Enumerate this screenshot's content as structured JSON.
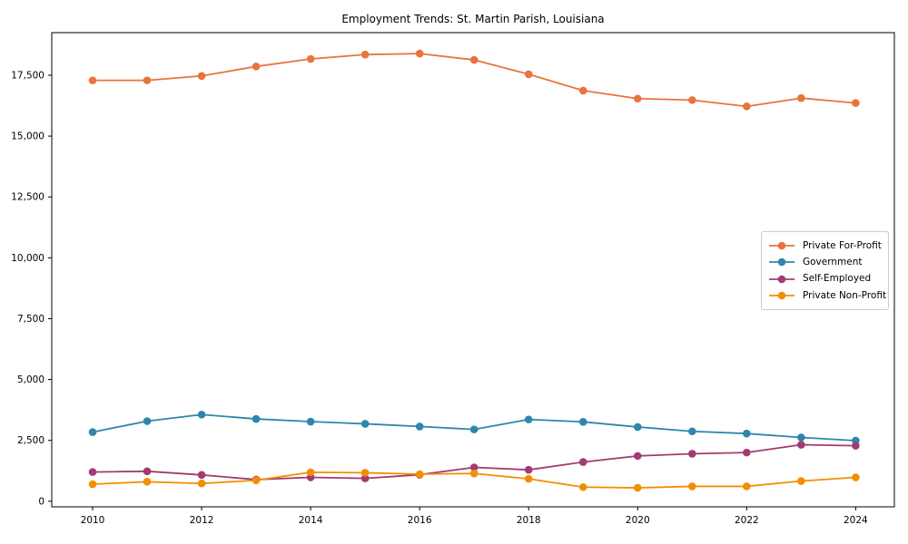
{
  "chart_data": {
    "type": "line",
    "title": "Employment Trends: St. Martin Parish, Louisiana",
    "xlabel": "",
    "ylabel": "",
    "x": [
      2010,
      2011,
      2012,
      2013,
      2014,
      2015,
      2016,
      2017,
      2018,
      2019,
      2020,
      2021,
      2022,
      2023,
      2024
    ],
    "series": [
      {
        "name": "Private For-Profit",
        "color": "#E8743C",
        "values": [
          17290,
          17290,
          17470,
          17860,
          18170,
          18350,
          18390,
          18130,
          17540,
          16870,
          16540,
          16480,
          16220,
          16560,
          16360
        ]
      },
      {
        "name": "Government",
        "color": "#2E86AB",
        "values": [
          2840,
          3290,
          3560,
          3380,
          3270,
          3180,
          3070,
          2950,
          3360,
          3260,
          3050,
          2870,
          2780,
          2620,
          2490
        ]
      },
      {
        "name": "Self-Employed",
        "color": "#A23B72",
        "values": [
          1200,
          1230,
          1080,
          890,
          980,
          940,
          1090,
          1390,
          1290,
          1610,
          1860,
          1950,
          2000,
          2320,
          2280
        ]
      },
      {
        "name": "Private Non-Profit",
        "color": "#F18F01",
        "values": [
          700,
          800,
          730,
          860,
          1190,
          1170,
          1110,
          1140,
          920,
          580,
          550,
          610,
          610,
          830,
          980
        ]
      }
    ],
    "xticks": [
      {
        "value": 2010,
        "label": "2010"
      },
      {
        "value": 2012,
        "label": "2012"
      },
      {
        "value": 2014,
        "label": "2014"
      },
      {
        "value": 2016,
        "label": "2016"
      },
      {
        "value": 2018,
        "label": "2018"
      },
      {
        "value": 2020,
        "label": "2020"
      },
      {
        "value": 2022,
        "label": "2022"
      },
      {
        "value": 2024,
        "label": "2024"
      }
    ],
    "yticks": [
      {
        "value": 0,
        "label": "0"
      },
      {
        "value": 2500,
        "label": "2,500"
      },
      {
        "value": 5000,
        "label": "5,000"
      },
      {
        "value": 7500,
        "label": "7,500"
      },
      {
        "value": 10000,
        "label": "10,000"
      },
      {
        "value": 12500,
        "label": "12,500"
      },
      {
        "value": 15000,
        "label": "15,000"
      },
      {
        "value": 17500,
        "label": "17,500"
      }
    ],
    "xlim": [
      2009.25,
      2024.71
    ],
    "ylim": [
      -230,
      19250
    ],
    "grid": false,
    "legend_position": "center right",
    "background_color": "#ffffff",
    "spine_color": "#000000"
  }
}
